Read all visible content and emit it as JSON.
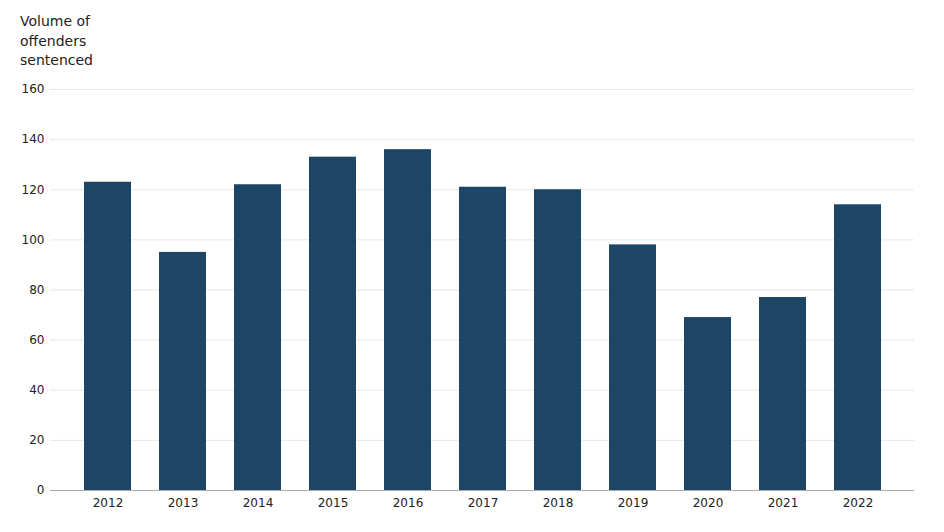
{
  "chart_data": {
    "type": "bar",
    "ylabel": "Volume of\noffenders\nsentenced",
    "categories": [
      "2012",
      "2013",
      "2014",
      "2015",
      "2016",
      "2017",
      "2018",
      "2019",
      "2020",
      "2021",
      "2022"
    ],
    "values": [
      123,
      95,
      122,
      133,
      136,
      121,
      120,
      98,
      69,
      77,
      114
    ],
    "color": "#1d4566",
    "ylim": [
      0,
      160
    ],
    "yticks": [
      0,
      20,
      40,
      60,
      80,
      100,
      120,
      140,
      160
    ],
    "grid": true
  }
}
